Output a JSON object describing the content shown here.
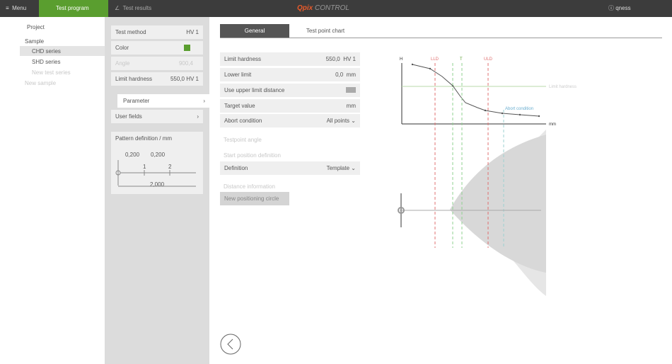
{
  "topbar": {
    "menu": "Menu",
    "test_program": "Test program",
    "test_results": "Test results",
    "logo_mark": "Q",
    "logo_pix": "pix",
    "logo_control": "CONTROL",
    "user": "qness"
  },
  "tree": {
    "project": "Project",
    "sample": "Sample",
    "chd_series": "CHD series",
    "shd_series": "SHD series",
    "new_test_series": "New test series",
    "new_sample": "New sample"
  },
  "settings": {
    "test_method": {
      "label": "Test method",
      "value": "HV 1"
    },
    "color": {
      "label": "Color"
    },
    "angle": {
      "label": "Angle",
      "value": "900,4"
    },
    "limit_hardness": {
      "label": "Limit hardness",
      "value": "550,0",
      "unit": "HV 1"
    },
    "parameter": "Parameter",
    "user_fields": "User fields",
    "pattern": {
      "title": "Pattern definition / mm",
      "spacing_1": "0,200",
      "spacing_2": "0,200",
      "point_1": "1",
      "point_2": "2",
      "total": "2,000"
    }
  },
  "tabs": {
    "general": "General",
    "chart": "Test point chart"
  },
  "form": {
    "limit_hardness": {
      "label": "Limit hardness",
      "value": "550,0",
      "unit": "HV 1"
    },
    "lower_limit": {
      "label": "Lower limit",
      "value": "0,0",
      "unit": "mm"
    },
    "upper_limit_distance": {
      "label": "Use upper limit distance"
    },
    "target_value": {
      "label": "Target value",
      "unit": "mm"
    },
    "abort_condition": {
      "label": "Abort condition",
      "value": "All points"
    },
    "testpoint_angle": "Testpoint angle",
    "start_position": "Start position definition",
    "definition": {
      "label": "Definition",
      "value": "Template"
    },
    "distance_information": "Distance information",
    "new_positioning_circle": "New positioning circle"
  },
  "diagram": {
    "h_axis": "H",
    "lld": "LLD",
    "t": "T",
    "uld": "ULD",
    "limit_hardness": "Limit hardness",
    "abort_condition": "Abort condition",
    "mm_axis": "mm"
  }
}
